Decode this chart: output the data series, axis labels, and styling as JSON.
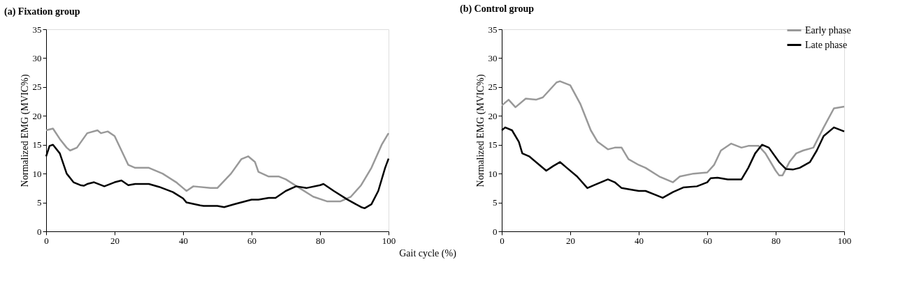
{
  "chart_data": [
    {
      "type": "line",
      "title": "(a) Fixation group",
      "xlabel": "Gait cycle (%)",
      "ylabel": "Normalized EMG (MVIC%)",
      "xlim": [
        0,
        100
      ],
      "xticks": [
        0,
        20,
        40,
        60,
        80,
        100
      ],
      "ylim": [
        0,
        35
      ],
      "yticks": [
        0,
        5,
        10,
        15,
        20,
        25,
        30,
        35
      ],
      "grid": false,
      "marker": "none",
      "line_style": "solid",
      "series": [
        {
          "color": "#999999",
          "x": [
            0,
            2,
            4,
            6,
            7,
            9,
            12,
            15,
            16,
            18,
            20,
            22,
            24,
            26,
            30,
            34,
            38,
            40,
            41,
            43,
            48,
            50,
            54,
            57,
            59,
            61,
            62,
            65,
            68,
            70,
            74,
            78,
            82,
            86,
            89,
            92,
            95,
            98,
            100
          ],
          "values": [
            17.5,
            17.8,
            16,
            14.5,
            14,
            14.5,
            17,
            17.5,
            17,
            17.3,
            16.5,
            14,
            11.5,
            11,
            11,
            10,
            8.5,
            7.5,
            7,
            7.8,
            7.5,
            7.5,
            10,
            12.5,
            13,
            12,
            10.3,
            9.5,
            9.5,
            9,
            7.5,
            6,
            5.2,
            5.2,
            6,
            8,
            11,
            15,
            17
          ]
        },
        {
          "color": "#000000",
          "x": [
            0,
            1,
            2,
            4,
            6,
            8,
            10,
            11,
            12,
            14,
            17,
            20,
            22,
            24,
            26,
            30,
            33,
            37,
            40,
            41,
            45,
            46,
            50,
            52,
            55,
            60,
            62,
            65,
            67,
            70,
            73,
            76,
            80,
            81,
            84,
            88,
            92,
            93,
            95,
            97,
            99,
            100
          ],
          "values": [
            13,
            14.8,
            15,
            13.5,
            10,
            8.5,
            8,
            7.9,
            8.2,
            8.5,
            7.8,
            8.5,
            8.8,
            8,
            8.2,
            8.2,
            7.7,
            6.8,
            5.7,
            5,
            4.5,
            4.4,
            4.4,
            4.2,
            4.7,
            5.5,
            5.5,
            5.8,
            5.8,
            7,
            7.8,
            7.5,
            8,
            8.2,
            7,
            5.5,
            4.2,
            4,
            4.7,
            7,
            11,
            12.6
          ]
        }
      ]
    },
    {
      "type": "line",
      "title": "(b) Control group",
      "ylabel": "Normalized EMG (MVIC%)",
      "xlim": [
        0,
        100
      ],
      "xticks": [
        0,
        20,
        40,
        60,
        80,
        100
      ],
      "ylim": [
        0,
        35
      ],
      "yticks": [
        0,
        5,
        10,
        15,
        20,
        25,
        30,
        35
      ],
      "grid": false,
      "marker": "none",
      "line_style": "solid",
      "legend": "top right",
      "series": [
        {
          "name": "Early phase",
          "color": "#999999",
          "x": [
            0,
            2,
            4,
            7,
            10,
            12,
            14,
            16,
            17,
            20,
            23,
            26,
            28,
            31,
            33,
            35,
            37,
            40,
            42,
            46,
            50,
            52,
            56,
            60,
            62,
            64,
            67,
            70,
            72,
            75,
            77,
            80,
            81,
            82,
            84,
            86,
            88,
            91,
            94,
            97,
            100
          ],
          "values": [
            21.8,
            22.8,
            21.5,
            23,
            22.8,
            23.2,
            24.5,
            25.8,
            26,
            25.3,
            22,
            17.5,
            15.5,
            14.2,
            14.5,
            14.5,
            12.5,
            11.5,
            11,
            9.5,
            8.5,
            9.5,
            10,
            10.2,
            11.5,
            14,
            15.2,
            14.5,
            14.8,
            14.8,
            13.5,
            10.5,
            9.7,
            9.7,
            12,
            13.5,
            14,
            14.5,
            18,
            21.3,
            21.6
          ]
        },
        {
          "name": "Late phase",
          "color": "#000000",
          "x": [
            0,
            1,
            3,
            5,
            6,
            8,
            11,
            13,
            15,
            17,
            19,
            22,
            25,
            27,
            31,
            33,
            35,
            37,
            40,
            42,
            45,
            47,
            50,
            53,
            57,
            60,
            61,
            63,
            66,
            70,
            72,
            74,
            76,
            78,
            81,
            83,
            85,
            87,
            90,
            92,
            94,
            97,
            100
          ],
          "values": [
            17.5,
            18,
            17.5,
            15.5,
            13.5,
            13,
            11.5,
            10.5,
            11.3,
            12,
            11,
            9.5,
            7.5,
            8,
            9,
            8.5,
            7.5,
            7.3,
            7,
            7,
            6.3,
            5.8,
            6.8,
            7.6,
            7.8,
            8.5,
            9.2,
            9.3,
            9,
            9,
            11,
            13.5,
            15,
            14.5,
            12,
            10.8,
            10.7,
            11,
            12,
            14,
            16.5,
            18,
            17.3
          ]
        }
      ]
    }
  ]
}
